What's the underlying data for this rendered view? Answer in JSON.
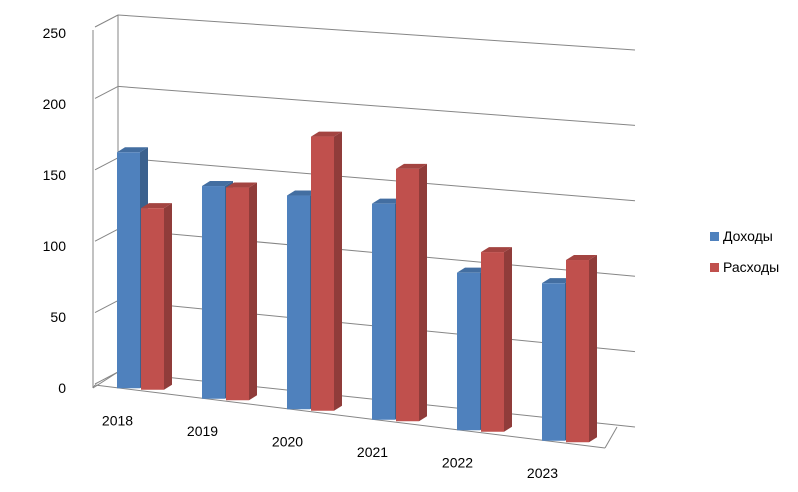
{
  "chart_data": {
    "type": "bar",
    "categories": [
      "2018",
      "2019",
      "2020",
      "2021",
      "2022",
      "2023"
    ],
    "series": [
      {
        "name": "Доходы",
        "values": [
          165,
          150,
          152,
          155,
          114,
          115
        ],
        "color": "#4F81BD"
      },
      {
        "name": "Расходы",
        "values": [
          127,
          150,
          195,
          181,
          130,
          133
        ],
        "color": "#C0504D"
      }
    ],
    "ylim": [
      0,
      250
    ],
    "yticks": [
      "0",
      "50",
      "100",
      "150",
      "200",
      "250"
    ],
    "grid": true,
    "legend": "right",
    "title": "",
    "xlabel": "",
    "ylabel": ""
  }
}
